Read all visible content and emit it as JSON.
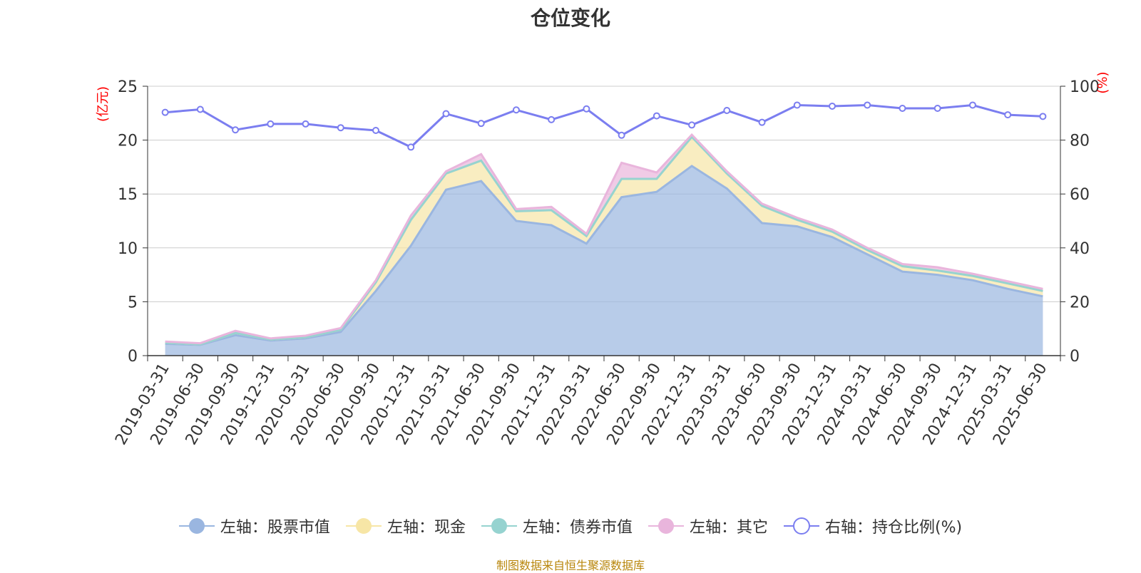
{
  "chart_data": {
    "type": "area",
    "title": "仓位变化",
    "y_left_unit": "(亿元)",
    "y_right_unit": "(%)",
    "ylim_left": [
      0,
      25
    ],
    "ylim_right": [
      0,
      100
    ],
    "y_left_ticks": [
      "0",
      "5",
      "10",
      "15",
      "20",
      "25"
    ],
    "y_right_ticks": [
      "0",
      "20",
      "40",
      "60",
      "80",
      "100"
    ],
    "grid": true,
    "legend_position": "bottom",
    "x": [
      "2019-03-31",
      "2019-06-30",
      "2019-09-30",
      "2019-12-31",
      "2020-03-31",
      "2020-06-30",
      "2020-09-30",
      "2020-12-31",
      "2021-03-31",
      "2021-06-30",
      "2021-09-30",
      "2021-12-31",
      "2022-03-31",
      "2022-06-30",
      "2022-09-30",
      "2022-12-31",
      "2023-03-31",
      "2023-06-30",
      "2023-09-30",
      "2023-12-31",
      "2024-03-31",
      "2024-06-30",
      "2024-09-30",
      "2024-12-31",
      "2025-03-31",
      "2025-06-30"
    ],
    "series": [
      {
        "name": "左轴：股票市值",
        "axis": "left",
        "kind": "stacked-area",
        "color": "#9ab6e0",
        "values": [
          1.1,
          1.0,
          1.9,
          1.4,
          1.6,
          2.2,
          6.0,
          10.2,
          15.4,
          16.2,
          12.5,
          12.1,
          10.4,
          14.7,
          15.2,
          17.6,
          15.5,
          12.3,
          12.0,
          11.0,
          9.4,
          7.8,
          7.5,
          7.0,
          6.2,
          5.5
        ]
      },
      {
        "name": "左轴：现金",
        "axis": "left",
        "kind": "stacked-area",
        "color": "#f7e6a6",
        "values": [
          0.1,
          0.05,
          0.2,
          0.1,
          0.1,
          0.2,
          0.8,
          2.4,
          1.5,
          1.9,
          0.9,
          1.4,
          0.7,
          1.7,
          1.2,
          2.7,
          1.4,
          1.6,
          0.6,
          0.5,
          0.4,
          0.5,
          0.4,
          0.4,
          0.5,
          0.5
        ]
      },
      {
        "name": "左轴：债券市值",
        "axis": "left",
        "kind": "stacked-area",
        "color": "#96d3d0",
        "values": [
          0,
          0,
          0,
          0,
          0,
          0,
          0,
          0,
          0,
          0,
          0,
          0,
          0,
          0,
          0,
          0,
          0,
          0,
          0,
          0,
          0,
          0,
          0,
          0,
          0,
          0
        ]
      },
      {
        "name": "左轴：其它",
        "axis": "left",
        "kind": "stacked-area",
        "color": "#e9b5dc",
        "values": [
          0.1,
          0.1,
          0.2,
          0.1,
          0.15,
          0.15,
          0.2,
          0.4,
          0.2,
          0.6,
          0.2,
          0.3,
          0.2,
          1.5,
          0.6,
          0.2,
          0.2,
          0.2,
          0.2,
          0.2,
          0.2,
          0.2,
          0.3,
          0.2,
          0.2,
          0.2
        ]
      },
      {
        "name": "右轴：持仓比例(%)",
        "axis": "right",
        "kind": "line",
        "color": "#7b7ef0",
        "values": [
          90.3,
          91.4,
          83.8,
          86.0,
          86.0,
          84.6,
          83.6,
          77.4,
          89.8,
          86.2,
          91.2,
          87.6,
          91.6,
          81.8,
          89.0,
          85.6,
          91.0,
          86.6,
          93.0,
          92.6,
          93.0,
          91.8,
          91.8,
          93.0,
          89.4,
          88.8
        ]
      }
    ]
  },
  "source_note": "制图数据来自恒生聚源数据库"
}
